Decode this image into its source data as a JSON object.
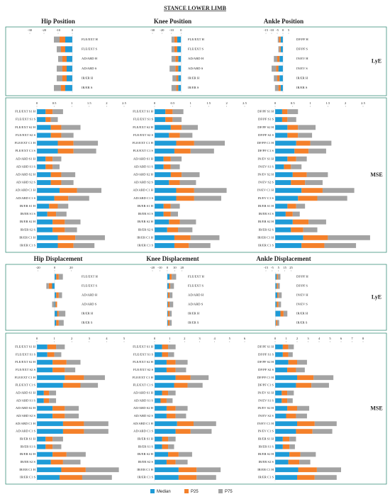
{
  "title": "STANCE LOWER LIMB",
  "row_labels": [
    "LyE",
    "MSE",
    "LyE",
    "MSE"
  ],
  "chart_data": [
    {
      "type": "bar",
      "orientation": "horizontal",
      "stacked": true,
      "title": "Hip Position",
      "categories": [
        "FLE/EXT H",
        "FLE/EXT S",
        "AD/ABD H",
        "AD/ABD S",
        "IR/ER H",
        "IR/ER S"
      ],
      "series": [
        {
          "name": "Median",
          "color": "#1e9bd7",
          "values": [
            -5,
            -5,
            -4,
            -4,
            -4,
            -5
          ]
        },
        {
          "name": "P25",
          "color": "#f4802a",
          "values": [
            -4,
            -3,
            -3,
            -3,
            -3,
            -3
          ]
        },
        {
          "name": "P75",
          "color": "#a3a3a3",
          "values": [
            -4,
            -3,
            -3,
            -4,
            -4,
            -5
          ]
        }
      ],
      "xlim": [
        -30,
        5
      ],
      "xticks": [
        -30,
        -20,
        -10,
        0
      ]
    },
    {
      "type": "bar",
      "orientation": "horizontal",
      "stacked": true,
      "title": "Knee Position",
      "categories": [
        "FLE/EXT H",
        "FLE/EXT S",
        "AD/ABD H",
        "AD/ABD S",
        "IR/ER H",
        "IR/ER S"
      ],
      "series": [
        {
          "name": "Median",
          "color": "#1e9bd7",
          "values": [
            -4,
            -4,
            -3,
            -3,
            -3,
            -3
          ]
        },
        {
          "name": "P25",
          "color": "#f4802a",
          "values": [
            -3,
            -3,
            -3,
            -3,
            -2,
            -2
          ]
        },
        {
          "name": "P75",
          "color": "#a3a3a3",
          "values": [
            -3,
            -3,
            -4,
            -6,
            -4,
            -5
          ]
        }
      ],
      "xlim": [
        -30,
        5
      ],
      "xticks": [
        -30,
        -20,
        -10,
        0
      ]
    },
    {
      "type": "bar",
      "orientation": "horizontal",
      "stacked": true,
      "title": "Ankle Position",
      "categories": [
        "DF/PF H",
        "DF/PF S",
        "IN/EV H",
        "IN/EV S",
        "IR/ER H",
        "IR/ER S"
      ],
      "series": [
        {
          "name": "Median",
          "color": "#1e9bd7",
          "values": [
            -2,
            -2,
            -3,
            -4,
            -3,
            -2
          ]
        },
        {
          "name": "P25",
          "color": "#f4802a",
          "values": [
            -1.5,
            -1,
            -2,
            -2,
            -2,
            -2
          ]
        },
        {
          "name": "P75",
          "color": "#a3a3a3",
          "values": [
            -1,
            -1,
            -3,
            -4,
            -3,
            -3
          ]
        }
      ],
      "xlim": [
        -15,
        10
      ],
      "xticks": [
        -15,
        -10,
        -5,
        0,
        5
      ]
    },
    {
      "type": "bar",
      "orientation": "horizontal",
      "stacked": true,
      "categories": [
        "FLE/EXT S1 H",
        "FLE/EXT S1 S",
        "FLE/EXT S2 H",
        "FLE/EXT S2 S",
        "FLE/EXT C1 H",
        "FLE/EXT C1 S",
        "AD/ABD S1 H",
        "AD/ABD S1 S",
        "AD/ABD S2 H",
        "AD/ABD S2 S",
        "AD/ABD C1 H",
        "AD/ABD C1 S",
        "IR/ER S1 H",
        "IR/ER S1 S",
        "IR/ER S2 H",
        "IR/ER S2 S",
        "IR/ER C1 H",
        "IR/ER C1 S"
      ],
      "series": [
        {
          "name": "Median",
          "color": "#1e9bd7",
          "values": [
            0.25,
            0.25,
            0.4,
            0.4,
            0.6,
            0.6,
            0.25,
            0.25,
            0.4,
            0.4,
            0.65,
            0.5,
            0.35,
            0.3,
            0.45,
            0.45,
            0.6,
            0.6
          ]
        },
        {
          "name": "P25",
          "color": "#f4802a",
          "values": [
            0.2,
            0.15,
            0.3,
            0.3,
            0.45,
            0.45,
            0.2,
            0.2,
            0.3,
            0.3,
            0.5,
            0.4,
            0.25,
            0.25,
            0.35,
            0.35,
            0.5,
            0.45
          ]
        },
        {
          "name": "P75",
          "color": "#a3a3a3",
          "values": [
            0.3,
            0.2,
            0.55,
            0.35,
            0.7,
            0.65,
            0.25,
            0.2,
            0.4,
            0.35,
            0.7,
            0.6,
            0.3,
            0.3,
            0.45,
            0.35,
            0.85,
            0.6
          ]
        }
      ],
      "xlim": [
        0,
        2.5
      ],
      "xticks": [
        0,
        0.5,
        1,
        1.5,
        2,
        2.5
      ]
    },
    {
      "type": "bar",
      "orientation": "horizontal",
      "stacked": true,
      "categories": [
        "FLE/EXT S1 H",
        "FLE/EXT S1 S",
        "FLE/EXT S2 H",
        "FLE/EXT S2 S",
        "FLE/EXT C1 H",
        "FLE/EXT C1 S",
        "AD/ABD S1 H",
        "AD/ABD S1 S",
        "AD/ABD S2 H",
        "AD/ABD S2 S",
        "AD/ABD C1 H",
        "AD/ABD C1 S",
        "IR/ER S1 H",
        "IR/ER S1 S",
        "IR/ER S2 H",
        "IR/ER S2 S",
        "IR/ER C1 H",
        "IR/ER C1 S"
      ],
      "series": [
        {
          "name": "Median",
          "color": "#1e9bd7",
          "values": [
            0.3,
            0.3,
            0.45,
            0.4,
            0.6,
            0.55,
            0.25,
            0.25,
            0.45,
            0.4,
            0.6,
            0.6,
            0.25,
            0.25,
            0.4,
            0.35,
            0.55,
            0.55
          ]
        },
        {
          "name": "P25",
          "color": "#f4802a",
          "values": [
            0.2,
            0.2,
            0.3,
            0.3,
            0.5,
            0.45,
            0.2,
            0.2,
            0.3,
            0.3,
            0.5,
            0.5,
            0.2,
            0.2,
            0.3,
            0.3,
            0.45,
            0.4
          ]
        },
        {
          "name": "P75",
          "color": "#a3a3a3",
          "values": [
            0.3,
            0.25,
            0.45,
            0.35,
            0.85,
            0.65,
            0.3,
            0.25,
            0.5,
            0.45,
            0.9,
            0.75,
            0.25,
            0.2,
            0.45,
            0.4,
            0.8,
            0.6
          ]
        }
      ],
      "xlim": [
        0,
        2.5
      ],
      "xticks": [
        0,
        0.5,
        1,
        1.5,
        2,
        2.5
      ]
    },
    {
      "type": "bar",
      "orientation": "horizontal",
      "stacked": true,
      "categories": [
        "DF/PF S1 H",
        "DF/PF S1 S",
        "DF/PF S2 H",
        "DF/PF S2 S",
        "DF/PF C1 H",
        "DF/PF C1 S",
        "IN/EV S1 H",
        "IN/EV S1 S",
        "IN/EV S2 H",
        "IN/EV S2 S",
        "IN/EV C1 H",
        "IN/EV C1 S",
        "IR/ER S1 H",
        "IR/ER S1 S",
        "IR/ER S2 H",
        "IR/ER S2 S",
        "IR/ER C1 H",
        "IR/ER C1 S"
      ],
      "series": [
        {
          "name": "Median",
          "color": "#1e9bd7",
          "values": [
            0.2,
            0.2,
            0.35,
            0.35,
            0.6,
            0.55,
            0.35,
            0.25,
            0.5,
            0.45,
            0.75,
            0.65,
            0.35,
            0.3,
            0.5,
            0.45,
            0.8,
            0.75
          ]
        },
        {
          "name": "P25",
          "color": "#f4802a",
          "values": [
            0.15,
            0.15,
            0.3,
            0.3,
            0.4,
            0.4,
            0.25,
            0.2,
            0.4,
            0.4,
            0.6,
            0.55,
            0.25,
            0.2,
            0.45,
            0.35,
            0.7,
            0.65
          ]
        },
        {
          "name": "P75",
          "color": "#a3a3a3",
          "values": [
            0.3,
            0.25,
            0.5,
            0.4,
            0.6,
            0.5,
            0.3,
            0.3,
            0.6,
            0.5,
            0.9,
            0.85,
            0.25,
            0.2,
            0.5,
            0.4,
            1.2,
            0.9
          ]
        }
      ],
      "xlim": [
        0,
        2.5
      ],
      "xticks": [
        0,
        0.5,
        1,
        1.5,
        2,
        2.5
      ]
    },
    {
      "type": "bar",
      "orientation": "horizontal",
      "stacked": true,
      "title": "Hip Displacement",
      "categories": [
        "FLE/EXT H",
        "FLE/EXT S",
        "AD/ABD H",
        "AD/ABD S",
        "IR/ER H",
        "IR/ER S"
      ],
      "series": [
        {
          "name": "Median",
          "color": "#1e9bd7",
          "values": [
            2,
            -3,
            2,
            1,
            3,
            2
          ]
        },
        {
          "name": "P25",
          "color": "#f4802a",
          "values": [
            3,
            -4,
            3,
            2,
            2,
            3
          ]
        },
        {
          "name": "P75",
          "color": "#a3a3a3",
          "values": [
            5,
            -3,
            4,
            -3,
            8,
            6
          ]
        }
      ],
      "xlim": [
        -30,
        30
      ],
      "xticks": [
        -20,
        0,
        20
      ]
    },
    {
      "type": "bar",
      "orientation": "horizontal",
      "stacked": true,
      "title": "Knee Displacement",
      "categories": [
        "FLE/EXT H",
        "FLE/EXT S",
        "AD/ABD H",
        "AD/ABD S",
        "IR/ER H",
        "IR/ER S"
      ],
      "series": [
        {
          "name": "Median",
          "color": "#1e9bd7",
          "values": [
            3,
            2,
            1,
            1,
            1,
            1
          ]
        },
        {
          "name": "P25",
          "color": "#f4802a",
          "values": [
            3,
            2,
            2,
            2,
            2,
            2
          ]
        },
        {
          "name": "P75",
          "color": "#a3a3a3",
          "values": [
            6,
            5,
            4,
            5,
            3,
            3
          ]
        }
      ],
      "xlim": [
        -20,
        25
      ],
      "xticks": [
        -20,
        -10,
        0,
        10,
        20
      ]
    },
    {
      "type": "bar",
      "orientation": "horizontal",
      "stacked": true,
      "title": "Ankle Displacement",
      "categories": [
        "DF/PF H",
        "DF/PF S",
        "IN/EV H",
        "IN/EV S",
        "IR/ER H",
        "IR/ER S"
      ],
      "series": [
        {
          "name": "Median",
          "color": "#1e9bd7",
          "values": [
            2,
            2,
            3,
            2,
            8,
            1
          ]
        },
        {
          "name": "P25",
          "color": "#f4802a",
          "values": [
            2,
            2,
            2,
            3,
            5,
            2
          ]
        },
        {
          "name": "P75",
          "color": "#a3a3a3",
          "values": [
            4,
            3,
            5,
            4,
            6,
            3
          ]
        }
      ],
      "xlim": [
        -15,
        30
      ],
      "xticks": [
        -15,
        -5,
        5,
        15,
        25
      ]
    },
    {
      "type": "bar",
      "orientation": "horizontal",
      "stacked": true,
      "categories": [
        "FLE/EXT S1 H",
        "FLE/EXT S1 S",
        "FLE/EXT S2 H",
        "FLE/EXT S2 S",
        "FLE/EXT C1 H",
        "FLE/EXT C1 S",
        "AD/ABD S1 H",
        "AD/ABD S1 S",
        "AD/ABD S2 H",
        "AD/ABD S2 S",
        "AD/ABD C1 H",
        "AD/ABD C1 S",
        "IR/ER S1 H",
        "IR/ER S1 S",
        "IR/ER S2 H",
        "IR/ER S2 S",
        "IR/ER C1 H",
        "IR/ER C1 S"
      ],
      "series": [
        {
          "name": "Median",
          "color": "#1e9bd7",
          "values": [
            0.6,
            0.6,
            0.9,
            0.9,
            1.6,
            1.5,
            0.4,
            0.4,
            0.9,
            0.9,
            1.5,
            1.5,
            0.5,
            0.5,
            0.9,
            0.8,
            1.4,
            1.3
          ]
        },
        {
          "name": "P25",
          "color": "#f4802a",
          "values": [
            0.5,
            0.4,
            0.8,
            0.7,
            1.1,
            1.0,
            0.3,
            0.3,
            0.7,
            0.7,
            1.2,
            1.2,
            0.4,
            0.4,
            0.8,
            0.7,
            1.4,
            1.3
          ]
        },
        {
          "name": "P75",
          "color": "#a3a3a3",
          "values": [
            0.5,
            0.4,
            0.8,
            0.6,
            1.2,
            1.0,
            0.4,
            0.4,
            0.8,
            0.8,
            1.4,
            1.4,
            0.6,
            0.5,
            1.1,
            1.0,
            1.9,
            1.7
          ]
        }
      ],
      "xlim": [
        0,
        5
      ],
      "xticks": [
        0,
        1,
        2,
        3,
        4,
        5
      ]
    },
    {
      "type": "bar",
      "orientation": "horizontal",
      "stacked": true,
      "categories": [
        "FLE/EXT S1 H",
        "FLE/EXT S1 S",
        "FLE/EXT S2 H",
        "FLE/EXT S2 S",
        "FLE/EXT C1 H",
        "FLE/EXT C1 S",
        "AD/ABD S1 H",
        "AD/ABD S1 S",
        "AD/ABD S2 H",
        "AD/ABD S2 S",
        "AD/ABD C1 H",
        "AD/ABD C1 S",
        "IR/ER S1 H",
        "IR/ER S1 S",
        "IR/ER S2 H",
        "IR/ER S2 S",
        "IR/ER C1 H",
        "IR/ER C1 S"
      ],
      "series": [
        {
          "name": "Median",
          "color": "#1e9bd7",
          "values": [
            0.5,
            0.5,
            0.8,
            0.8,
            1.4,
            1.3,
            0.5,
            0.4,
            0.8,
            0.8,
            1.5,
            1.4,
            0.5,
            0.5,
            0.9,
            0.8,
            1.6,
            1.6
          ]
        },
        {
          "name": "P25",
          "color": "#f4802a",
          "values": [
            0.4,
            0.4,
            0.6,
            0.6,
            1.0,
            0.9,
            0.4,
            0.4,
            0.6,
            0.6,
            1.1,
            1.0,
            0.4,
            0.4,
            0.7,
            0.6,
            1.2,
            1.2
          ]
        },
        {
          "name": "P75",
          "color": "#a3a3a3",
          "values": [
            0.5,
            0.4,
            0.8,
            0.7,
            1.2,
            1.0,
            0.5,
            0.4,
            0.8,
            0.7,
            1.5,
            1.4,
            0.5,
            0.4,
            0.9,
            0.8,
            1.6,
            1.3
          ]
        }
      ],
      "xlim": [
        0,
        6
      ],
      "xticks": [
        0,
        1,
        2,
        3,
        4,
        5,
        6
      ]
    },
    {
      "type": "bar",
      "orientation": "horizontal",
      "stacked": true,
      "categories": [
        "DF/PF S1 H",
        "DF/PF S1 S",
        "DF/PF S2 H",
        "DF/PF S2 S",
        "DF/PF C1 H",
        "DF/PF C1 S",
        "IN/EV S1 H",
        "IN/EV S1 S",
        "IN/EV S2 H",
        "IN/EV S2 S",
        "IN/EV C1 H",
        "IN/EV C1 S",
        "IR/ER S1 H",
        "IR/ER S1 S",
        "IR/ER S2 H",
        "IR/ER S2 S",
        "IR/ER C1 H",
        "IR/ER C1 S"
      ],
      "series": [
        {
          "name": "Median",
          "color": "#1e9bd7",
          "values": [
            0.7,
            0.7,
            1.2,
            1.1,
            2.0,
            1.9,
            0.6,
            0.6,
            1.1,
            1.0,
            2.0,
            1.9,
            0.7,
            0.7,
            1.3,
            1.2,
            2.1,
            2.0
          ]
        },
        {
          "name": "P25",
          "color": "#f4802a",
          "values": [
            0.5,
            0.5,
            0.8,
            0.8,
            1.5,
            1.4,
            0.5,
            0.5,
            0.9,
            0.9,
            1.6,
            1.5,
            0.6,
            0.6,
            1.0,
            1.0,
            1.7,
            1.6
          ]
        },
        {
          "name": "P75",
          "color": "#a3a3a3",
          "values": [
            0.5,
            0.4,
            0.9,
            0.8,
            1.8,
            1.6,
            0.6,
            0.5,
            1.1,
            1.0,
            2.0,
            1.8,
            0.6,
            0.5,
            1.4,
            1.0,
            2.2,
            2.0
          ]
        }
      ],
      "xlim": [
        0,
        8
      ],
      "xticks": [
        0,
        1,
        2,
        3,
        4,
        5,
        6,
        7,
        8
      ]
    }
  ]
}
